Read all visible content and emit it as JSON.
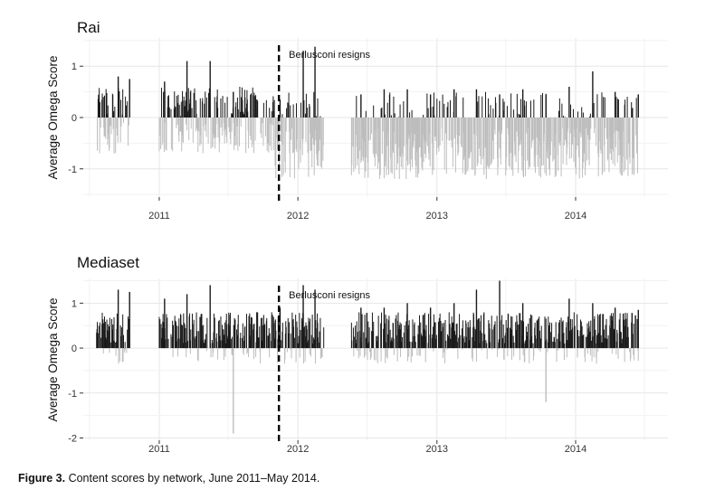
{
  "caption": {
    "label": "Figure 3.",
    "text": "Content scores by network, June 2011–May 2014."
  },
  "colors": {
    "positive": "#1a1a1a",
    "negative": "#bdbdbd",
    "grid_major": "#e6e6e6",
    "grid_minor": "#f2f2f2",
    "event_line": "#000000"
  },
  "chart_data": [
    {
      "type": "bar",
      "title": "Rai",
      "ylabel": "Average Omega Score",
      "xlabel": "",
      "x_ticks": [
        "2011",
        "2012",
        "2013",
        "2014"
      ],
      "y_ticks": [
        "1",
        "0",
        "-1"
      ],
      "ylim": [
        -1.55,
        1.55
      ],
      "grid": true,
      "event": {
        "label": "Berlusconi resigns",
        "date": "2011-11-12"
      },
      "coverage_gaps": [
        [
          "2010-10-15",
          "2010-12-31"
        ],
        [
          "2012-03-10",
          "2012-05-20"
        ]
      ],
      "approx_range": {
        "max": 1.4,
        "min": -1.5
      },
      "series": [
        {
          "x": [
            "2010-09",
            "2010-10",
            "2011-01",
            "2011-03",
            "2011-05",
            "2011-07",
            "2011-09",
            "2011-11",
            "2012-01",
            "2012-02",
            "2012-06",
            "2012-08",
            "2012-10",
            "2012-12",
            "2013-02",
            "2013-04",
            "2013-06",
            "2013-08",
            "2013-10",
            "2013-12",
            "2014-02",
            "2014-04",
            "2014-06"
          ],
          "values": [
            0.8,
            0.75,
            0.7,
            1.1,
            1.1,
            0.5,
            0.35,
            0.35,
            1.3,
            1.38,
            0.45,
            0.55,
            0.55,
            0.45,
            0.55,
            0.55,
            0.45,
            0.55,
            0.45,
            0.6,
            0.9,
            0.5,
            0.45
          ],
          "summary": "Daily scores mostly negative after late 2011; sparse positive spikes up to about 1.4 in early 2012."
        }
      ]
    },
    {
      "type": "bar",
      "title": "Mediaset",
      "ylabel": "Average Omega Score",
      "xlabel": "",
      "x_ticks": [
        "2011",
        "2012",
        "2013",
        "2014"
      ],
      "y_ticks": [
        "1",
        "0",
        "-1",
        "-2"
      ],
      "ylim": [
        -2.05,
        1.55
      ],
      "grid": true,
      "event": {
        "label": "Berlusconi resigns",
        "date": "2011-11-12"
      },
      "coverage_gaps": [
        [
          "2010-10-15",
          "2010-12-31"
        ],
        [
          "2012-03-10",
          "2012-05-20"
        ]
      ],
      "approx_range": {
        "max": 1.5,
        "min": -1.95
      },
      "series": [
        {
          "x": [
            "2010-09",
            "2010-10",
            "2011-01",
            "2011-03",
            "2011-05",
            "2011-07",
            "2011-09",
            "2011-11",
            "2012-01",
            "2012-02",
            "2012-06",
            "2012-08",
            "2012-10",
            "2012-12",
            "2013-02",
            "2013-04",
            "2013-06",
            "2013-08",
            "2013-10",
            "2013-12",
            "2014-02",
            "2014-04",
            "2014-06"
          ],
          "values": [
            1.3,
            1.25,
            1.1,
            1.2,
            1.4,
            -1.9,
            0.8,
            0.9,
            1.4,
            1.3,
            0.9,
            0.9,
            1.0,
            0.9,
            1.0,
            1.3,
            1.5,
            1.0,
            -1.2,
            1.1,
            1.0,
            0.9,
            0.85
          ],
          "summary": "Daily scores mostly positive throughout; isolated negative spikes near mid-2011 (about -1.9) and late 2013 (about -1.2)."
        }
      ]
    }
  ]
}
